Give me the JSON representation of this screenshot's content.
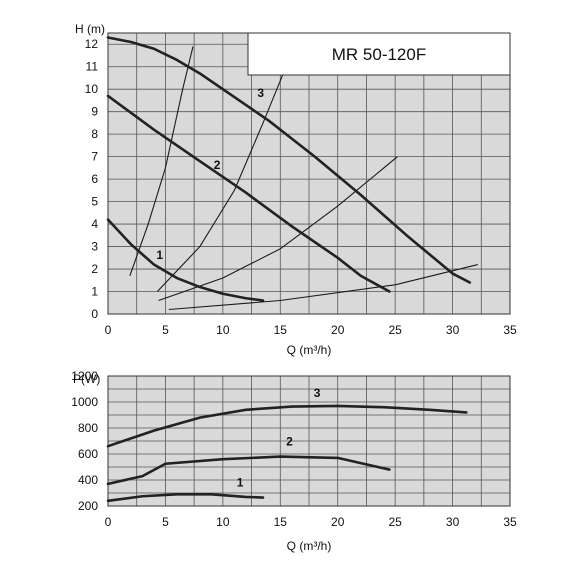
{
  "chart_data": [
    {
      "type": "line",
      "title": "MR 50-120F",
      "xlabel": "Q (m³/h)",
      "ylabel": "H (m)",
      "xlim": [
        0,
        35
      ],
      "ylim": [
        0,
        12.5
      ],
      "x_ticks": [
        "0",
        "5",
        "10",
        "15",
        "20",
        "25",
        "30",
        "35"
      ],
      "y_ticks": [
        "0",
        "1",
        "2",
        "3",
        "4",
        "5",
        "6",
        "7",
        "8",
        "9",
        "10",
        "11",
        "12"
      ],
      "grid": true,
      "background": "#d9d9d9",
      "series": [
        {
          "name": "1",
          "x": [
            0,
            2,
            4,
            6,
            8,
            10,
            12,
            13.5
          ],
          "y": [
            4.2,
            3.1,
            2.2,
            1.6,
            1.2,
            0.9,
            0.7,
            0.6
          ]
        },
        {
          "name": "2",
          "x": [
            0,
            4,
            8,
            12,
            16,
            20,
            22,
            24.5
          ],
          "y": [
            9.7,
            8.2,
            6.8,
            5.4,
            3.9,
            2.5,
            1.7,
            1.0
          ]
        },
        {
          "name": "3",
          "x": [
            0,
            2,
            4,
            6,
            8,
            10,
            14,
            18,
            22,
            26,
            30,
            31.5
          ],
          "y": [
            12.3,
            12.1,
            11.8,
            11.3,
            10.7,
            10.0,
            8.6,
            7.0,
            5.3,
            3.5,
            1.8,
            1.4
          ]
        }
      ],
      "system_curves": [
        {
          "x": [
            1.9,
            3.5,
            5.0,
            6.5,
            7.4
          ],
          "y": [
            1.7,
            4.0,
            6.5,
            10.0,
            11.9
          ]
        },
        {
          "x": [
            4.3,
            8,
            11,
            13.5,
            15.5
          ],
          "y": [
            1.0,
            3.0,
            5.5,
            8.5,
            11.0
          ]
        },
        {
          "x": [
            4.4,
            10,
            15,
            20,
            25.2
          ],
          "y": [
            0.6,
            1.6,
            2.9,
            4.8,
            7.0
          ]
        },
        {
          "x": [
            5.3,
            15,
            25,
            32.2
          ],
          "y": [
            0.2,
            0.6,
            1.3,
            2.2
          ]
        }
      ],
      "curve_labels": [
        {
          "text": "1",
          "x": 4.5,
          "y": 2.45
        },
        {
          "text": "2",
          "x": 9.5,
          "y": 6.45
        },
        {
          "text": "3",
          "x": 13.3,
          "y": 9.65
        }
      ]
    },
    {
      "type": "line",
      "xlabel": "Q (m³/h)",
      "ylabel": "P(W)",
      "xlim": [
        0,
        35
      ],
      "ylim": [
        200,
        1200
      ],
      "x_ticks": [
        "0",
        "5",
        "10",
        "15",
        "20",
        "25",
        "30",
        "35"
      ],
      "y_ticks": [
        "200",
        "400",
        "600",
        "800",
        "1000",
        "1200"
      ],
      "grid": true,
      "background": "#d9d9d9",
      "series": [
        {
          "name": "1",
          "x": [
            0,
            3,
            6,
            9,
            12,
            13.5
          ],
          "y": [
            240,
            275,
            290,
            290,
            270,
            265
          ]
        },
        {
          "name": "2",
          "x": [
            0,
            3,
            5,
            10,
            15,
            20,
            24.5
          ],
          "y": [
            370,
            430,
            525,
            560,
            580,
            570,
            480
          ]
        },
        {
          "name": "3",
          "x": [
            0,
            4,
            8,
            12,
            16,
            20,
            24,
            28,
            31.2
          ],
          "y": [
            660,
            780,
            880,
            940,
            965,
            970,
            960,
            940,
            920
          ]
        }
      ],
      "curve_labels": [
        {
          "text": "1",
          "x": 11.5,
          "y": 350
        },
        {
          "text": "2",
          "x": 15.8,
          "y": 665
        },
        {
          "text": "3",
          "x": 18.2,
          "y": 1040
        }
      ]
    }
  ]
}
